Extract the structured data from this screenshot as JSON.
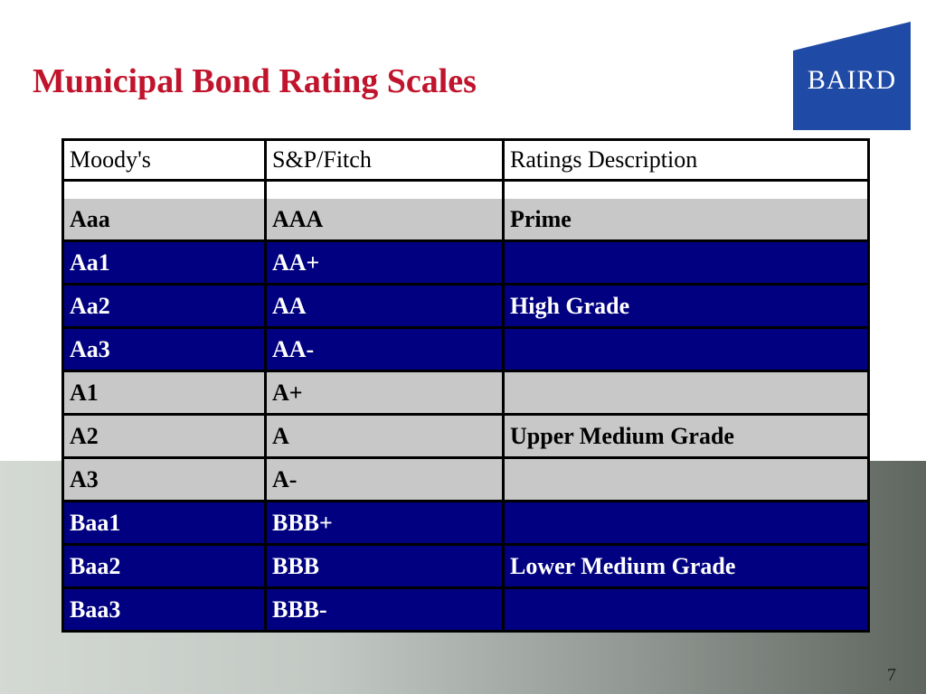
{
  "slide": {
    "title": "Municipal Bond Rating Scales",
    "page_number": "7",
    "logo_text": "BAIRD"
  },
  "colors": {
    "title": "#c0142c",
    "logo_blue": "#1f4aa6",
    "row_gray": "#c8c8c8",
    "row_blue": "#000080"
  },
  "table": {
    "headers": [
      "Moody's",
      "S&P/Fitch",
      "Ratings Description"
    ],
    "rows": [
      {
        "moodys": "Aaa",
        "sp_fitch": "AAA",
        "description": "Prime",
        "tone": "gray"
      },
      {
        "moodys": "Aa1",
        "sp_fitch": "AA+",
        "description": "",
        "tone": "blue"
      },
      {
        "moodys": "Aa2",
        "sp_fitch": "AA",
        "description": "High Grade",
        "tone": "blue"
      },
      {
        "moodys": "Aa3",
        "sp_fitch": "AA-",
        "description": "",
        "tone": "blue"
      },
      {
        "moodys": "A1",
        "sp_fitch": "A+",
        "description": "",
        "tone": "gray"
      },
      {
        "moodys": "A2",
        "sp_fitch": "A",
        "description": "Upper Medium Grade",
        "tone": "gray"
      },
      {
        "moodys": "A3",
        "sp_fitch": "A-",
        "description": "",
        "tone": "gray"
      },
      {
        "moodys": "Baa1",
        "sp_fitch": "BBB+",
        "description": "",
        "tone": "blue"
      },
      {
        "moodys": "Baa2",
        "sp_fitch": "BBB",
        "description": "Lower Medium Grade",
        "tone": "blue"
      },
      {
        "moodys": "Baa3",
        "sp_fitch": "BBB-",
        "description": "",
        "tone": "blue"
      }
    ]
  }
}
